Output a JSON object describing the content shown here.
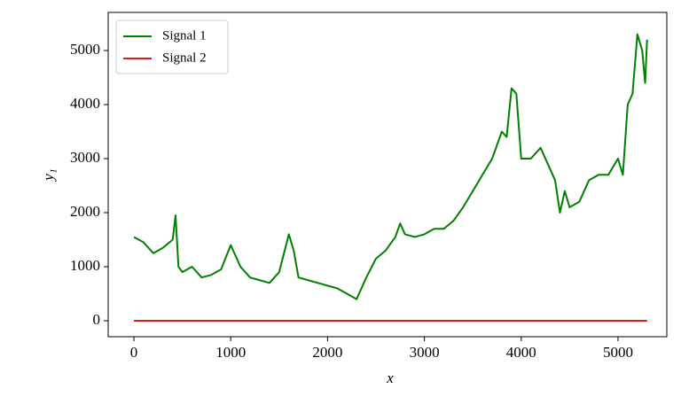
{
  "chart_data": {
    "type": "line",
    "xlabel": "x",
    "ylabel": "y₁",
    "x": [
      0,
      100,
      200,
      300,
      400,
      430,
      460,
      500,
      600,
      700,
      800,
      900,
      1000,
      1100,
      1200,
      1300,
      1400,
      1500,
      1600,
      1650,
      1700,
      1800,
      1900,
      2000,
      2100,
      2200,
      2300,
      2400,
      2500,
      2600,
      2700,
      2750,
      2800,
      2900,
      3000,
      3100,
      3200,
      3300,
      3400,
      3500,
      3600,
      3700,
      3800,
      3850,
      3900,
      3950,
      4000,
      4100,
      4200,
      4300,
      4350,
      4400,
      4450,
      4500,
      4600,
      4700,
      4800,
      4900,
      5000,
      5050,
      5100,
      5150,
      5200,
      5250,
      5280,
      5300
    ],
    "series": [
      {
        "name": "Signal 1",
        "color": "#008000",
        "values": [
          1550,
          1450,
          1250,
          1350,
          1500,
          1950,
          1000,
          900,
          1000,
          800,
          850,
          950,
          1400,
          1000,
          800,
          750,
          700,
          900,
          1600,
          1300,
          800,
          750,
          700,
          650,
          600,
          500,
          400,
          800,
          1150,
          1300,
          1550,
          1800,
          1600,
          1550,
          1600,
          1700,
          1700,
          1850,
          2100,
          2400,
          2700,
          3000,
          3500,
          3400,
          4300,
          4200,
          3000,
          3000,
          3200,
          2800,
          2600,
          2000,
          2400,
          2100,
          2200,
          2600,
          2700,
          2700,
          3000,
          2700,
          4000,
          4200,
          5300,
          5000,
          4400,
          5200
        ]
      },
      {
        "name": "Signal 2",
        "color": "#d62020",
        "values": [
          0,
          0,
          0,
          0,
          0,
          0,
          0,
          0,
          0,
          0,
          0,
          0,
          0,
          0,
          0,
          0,
          0,
          0,
          0,
          0,
          0,
          0,
          0,
          0,
          0,
          0,
          0,
          0,
          0,
          0,
          0,
          0,
          0,
          0,
          0,
          0,
          0,
          0,
          0,
          0,
          0,
          0,
          0,
          0,
          0,
          0,
          0,
          0,
          0,
          0,
          0,
          0,
          0,
          0,
          0,
          0,
          0,
          0,
          0,
          0,
          0,
          0,
          0,
          0,
          0,
          0
        ]
      }
    ],
    "xlim": [
      -266,
      5504
    ],
    "ylim": [
      -295,
      5705
    ],
    "xticks": [
      0,
      1000,
      2000,
      3000,
      4000,
      5000
    ],
    "yticks": [
      0,
      1000,
      2000,
      3000,
      4000,
      5000
    ],
    "legend": "upper left"
  }
}
